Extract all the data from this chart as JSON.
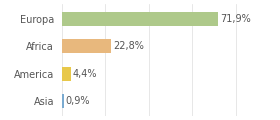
{
  "categories": [
    "Europa",
    "Africa",
    "America",
    "Asia"
  ],
  "values": [
    71.9,
    22.8,
    4.4,
    0.9
  ],
  "labels": [
    "71,9%",
    "22,8%",
    "4,4%",
    "0,9%"
  ],
  "bar_colors": [
    "#aec98a",
    "#e8b87d",
    "#e8c84a",
    "#7aaad0"
  ],
  "background_color": "#ffffff",
  "grid_color": "#dddddd",
  "xlim": [
    0,
    90
  ],
  "bar_height": 0.5,
  "label_fontsize": 7,
  "tick_fontsize": 7,
  "text_color": "#555555"
}
